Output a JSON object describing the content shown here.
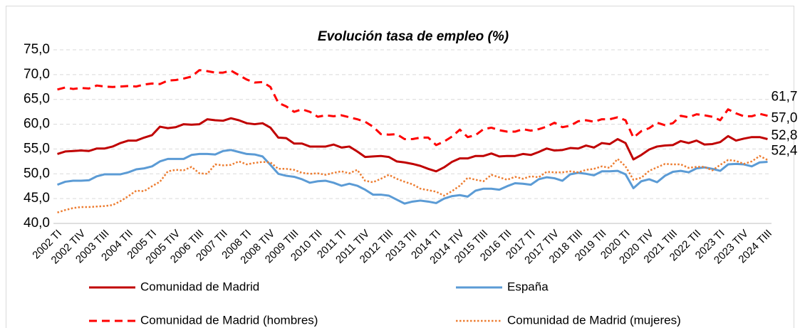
{
  "chart_data": {
    "type": "line",
    "title": "Evolución tasa de empleo (%)",
    "categories": [
      "2002 TI",
      null,
      null,
      "2002 TIV",
      null,
      null,
      "2003 TIII",
      null,
      null,
      "2004 TII",
      null,
      null,
      "2005 TI",
      null,
      null,
      "2005 TIV",
      null,
      null,
      "2006 TIII",
      null,
      null,
      "2007 TII",
      null,
      null,
      "2008 TI",
      null,
      null,
      "2008 TIV",
      null,
      null,
      "2009 TIII",
      null,
      null,
      "2010 TII",
      null,
      null,
      "2011 TI",
      null,
      null,
      "2011 TIV",
      null,
      null,
      "2012 TIII",
      null,
      null,
      "2013 TII",
      null,
      null,
      "2014 TI",
      null,
      null,
      "2014 TIV",
      null,
      null,
      "2015 TIII",
      null,
      null,
      "2016 TII",
      null,
      null,
      "2017 TI",
      null,
      null,
      "2017 TIV",
      null,
      null,
      "2018 TIII",
      null,
      null,
      "2019 TII",
      null,
      null,
      "2020 TI",
      null,
      null,
      "2020 TIV",
      null,
      null,
      "2021 TIII",
      null,
      null,
      "2022 TII",
      null,
      null,
      "2023 TI",
      null,
      null,
      "2023 TIV",
      null,
      null,
      "2024 TIII"
    ],
    "series": [
      {
        "name": "Comunidad de Madrid",
        "color": "#c00000",
        "dash": "solid",
        "values": [
          54.0,
          54.5,
          54.6,
          54.7,
          54.6,
          55.1,
          55.1,
          55.5,
          56.2,
          56.7,
          56.7,
          57.3,
          57.8,
          59.5,
          59.2,
          59.4,
          60.0,
          59.9,
          60.0,
          61.0,
          60.8,
          60.7,
          61.2,
          60.8,
          60.2,
          60.0,
          60.2,
          59.3,
          57.3,
          57.2,
          56.1,
          56.1,
          55.5,
          55.5,
          55.5,
          55.9,
          55.3,
          55.5,
          54.5,
          53.4,
          53.5,
          53.6,
          53.4,
          52.5,
          52.3,
          52.0,
          51.6,
          51.0,
          50.5,
          51.3,
          52.4,
          53.1,
          53.1,
          53.6,
          53.6,
          54.1,
          53.5,
          53.6,
          53.6,
          54.0,
          53.8,
          54.4,
          55.1,
          54.7,
          54.8,
          55.2,
          55.1,
          55.7,
          55.3,
          56.2,
          56.0,
          57.0,
          56.2,
          52.9,
          53.8,
          54.9,
          55.5,
          55.7,
          55.8,
          56.6,
          56.2,
          56.7,
          55.9,
          56.0,
          56.4,
          57.6,
          56.7,
          57.1,
          57.4,
          57.4,
          57.0
        ],
        "value_labels": [
          null,
          null,
          null,
          null,
          null,
          null,
          null,
          null,
          null,
          null,
          null,
          null,
          null,
          null,
          null,
          null,
          null,
          null,
          null,
          null,
          null,
          null,
          null,
          null,
          null,
          null,
          null,
          null,
          null,
          null,
          null,
          null,
          null,
          null,
          null,
          null,
          null,
          null,
          null,
          null,
          null,
          null,
          null,
          null,
          null,
          null,
          null,
          null,
          null,
          null,
          null,
          null,
          null,
          null,
          null,
          null,
          null,
          null,
          null,
          null,
          null,
          null,
          null,
          null,
          null,
          null,
          null,
          null,
          null,
          null,
          null,
          null,
          null,
          null,
          null,
          null,
          null,
          null,
          null,
          null,
          null,
          null,
          null,
          null,
          null,
          null,
          null,
          null,
          null,
          null,
          "57,0"
        ]
      },
      {
        "name": "España",
        "color": "#5b9bd5",
        "dash": "solid",
        "values": [
          47.8,
          48.4,
          48.6,
          48.6,
          48.7,
          49.5,
          49.9,
          49.9,
          49.9,
          50.3,
          50.9,
          51.1,
          51.5,
          52.5,
          53.0,
          53.0,
          53.0,
          53.8,
          54.0,
          54.0,
          53.9,
          54.6,
          54.8,
          54.4,
          54.0,
          53.9,
          53.5,
          51.8,
          50.0,
          49.6,
          49.4,
          48.9,
          48.2,
          48.5,
          48.6,
          48.2,
          47.6,
          48.0,
          47.6,
          46.8,
          45.8,
          45.8,
          45.6,
          44.8,
          44.0,
          44.4,
          44.6,
          44.4,
          44.1,
          45.0,
          45.5,
          45.7,
          45.4,
          46.6,
          47.0,
          47.0,
          46.8,
          47.5,
          48.1,
          48.0,
          47.8,
          48.9,
          49.3,
          49.1,
          48.6,
          49.9,
          50.2,
          50.0,
          49.7,
          50.5,
          50.5,
          50.6,
          49.9,
          47.1,
          48.5,
          48.9,
          48.3,
          49.6,
          50.4,
          50.6,
          50.3,
          51.1,
          51.3,
          51.0,
          50.6,
          51.9,
          52.0,
          51.9,
          51.5,
          52.3,
          52.4
        ],
        "value_labels": [
          null,
          null,
          null,
          null,
          null,
          null,
          null,
          null,
          null,
          null,
          null,
          null,
          null,
          null,
          null,
          null,
          null,
          null,
          null,
          null,
          null,
          null,
          null,
          null,
          null,
          null,
          null,
          null,
          null,
          null,
          null,
          null,
          null,
          null,
          null,
          null,
          null,
          null,
          null,
          null,
          null,
          null,
          null,
          null,
          null,
          null,
          null,
          null,
          null,
          null,
          null,
          null,
          null,
          null,
          null,
          null,
          null,
          null,
          null,
          null,
          null,
          null,
          null,
          null,
          null,
          null,
          null,
          null,
          null,
          null,
          null,
          null,
          null,
          null,
          null,
          null,
          null,
          null,
          null,
          null,
          null,
          null,
          null,
          null,
          null,
          null,
          null,
          null,
          null,
          null,
          "52,4"
        ]
      },
      {
        "name": "Comunidad de Madrid (hombres)",
        "color": "#ff0000",
        "dash": "dashed",
        "values": [
          67.0,
          67.4,
          67.1,
          67.3,
          67.2,
          67.8,
          67.6,
          67.5,
          67.6,
          67.7,
          67.6,
          68.0,
          68.2,
          68.1,
          68.8,
          68.9,
          69.2,
          69.6,
          70.9,
          70.7,
          70.4,
          70.4,
          70.8,
          69.9,
          69.0,
          68.4,
          68.5,
          67.5,
          64.3,
          63.6,
          62.5,
          63.0,
          62.5,
          61.5,
          61.8,
          61.6,
          61.8,
          61.4,
          61.0,
          60.5,
          59.5,
          58.0,
          57.9,
          58.0,
          57.0,
          57.0,
          57.3,
          57.3,
          55.8,
          56.5,
          57.5,
          58.9,
          57.4,
          57.8,
          59.0,
          59.3,
          58.8,
          58.5,
          58.5,
          59.0,
          58.7,
          59.0,
          59.5,
          60.3,
          59.4,
          59.7,
          60.6,
          60.8,
          60.5,
          61.0,
          61.0,
          61.4,
          60.8,
          57.3,
          58.6,
          59.2,
          60.3,
          59.8,
          60.2,
          61.7,
          61.4,
          62.0,
          61.8,
          61.5,
          60.8,
          63.0,
          62.2,
          61.6,
          61.6,
          62.1,
          61.7
        ],
        "value_labels": [
          null,
          null,
          null,
          null,
          null,
          null,
          null,
          null,
          null,
          null,
          null,
          null,
          null,
          null,
          null,
          null,
          null,
          null,
          null,
          null,
          null,
          null,
          null,
          null,
          null,
          null,
          null,
          null,
          null,
          null,
          null,
          null,
          null,
          null,
          null,
          null,
          null,
          null,
          null,
          null,
          null,
          null,
          null,
          null,
          null,
          null,
          null,
          null,
          null,
          null,
          null,
          null,
          null,
          null,
          null,
          null,
          null,
          null,
          null,
          null,
          null,
          null,
          null,
          null,
          null,
          null,
          null,
          null,
          null,
          null,
          null,
          null,
          null,
          null,
          null,
          null,
          null,
          null,
          null,
          null,
          null,
          null,
          null,
          null,
          null,
          null,
          null,
          null,
          null,
          null,
          "61,7"
        ]
      },
      {
        "name": "Comunidad de Madrid (mujeres)",
        "color": "#ed7d31",
        "dash": "dotted",
        "values": [
          42.2,
          42.7,
          43.1,
          43.3,
          43.3,
          43.4,
          43.5,
          43.7,
          44.5,
          45.5,
          46.6,
          46.5,
          47.5,
          48.4,
          50.5,
          50.8,
          50.7,
          51.4,
          50.1,
          50.0,
          51.9,
          51.7,
          51.8,
          52.5,
          51.9,
          52.2,
          52.4,
          52.3,
          51.0,
          51.0,
          50.8,
          50.2,
          50.0,
          50.1,
          49.8,
          50.2,
          50.5,
          50.1,
          50.8,
          48.6,
          48.3,
          49.0,
          49.8,
          49.0,
          48.4,
          47.9,
          47.0,
          46.7,
          46.4,
          45.6,
          46.5,
          47.6,
          49.2,
          48.8,
          48.5,
          49.8,
          49.3,
          48.8,
          49.4,
          49.0,
          49.5,
          49.3,
          50.4,
          50.3,
          50.3,
          50.5,
          50.3,
          50.8,
          51.0,
          51.5,
          51.2,
          53.0,
          51.5,
          48.8,
          49.2,
          50.6,
          51.3,
          52.0,
          51.9,
          51.9,
          51.2,
          51.4,
          51.4,
          50.7,
          51.8,
          52.8,
          52.6,
          52.0,
          52.5,
          53.6,
          52.8
        ],
        "value_labels": [
          null,
          null,
          null,
          null,
          null,
          null,
          null,
          null,
          null,
          null,
          null,
          null,
          null,
          null,
          null,
          null,
          null,
          null,
          null,
          null,
          null,
          null,
          null,
          null,
          null,
          null,
          null,
          null,
          null,
          null,
          null,
          null,
          null,
          null,
          null,
          null,
          null,
          null,
          null,
          null,
          null,
          null,
          null,
          null,
          null,
          null,
          null,
          null,
          null,
          null,
          null,
          null,
          null,
          null,
          null,
          null,
          null,
          null,
          null,
          null,
          null,
          null,
          null,
          null,
          null,
          null,
          null,
          null,
          null,
          null,
          null,
          null,
          null,
          null,
          null,
          null,
          null,
          null,
          null,
          null,
          null,
          null,
          null,
          null,
          null,
          null,
          null,
          null,
          null,
          null,
          "52,8"
        ]
      }
    ],
    "ylim": [
      40,
      75
    ],
    "yticks": [
      {
        "value": 40,
        "label": "40,0"
      },
      {
        "value": 45,
        "label": "45,0"
      },
      {
        "value": 50,
        "label": "50,0"
      },
      {
        "value": 55,
        "label": "55,0"
      },
      {
        "value": 60,
        "label": "60,0"
      },
      {
        "value": 65,
        "label": "65,0"
      },
      {
        "value": 70,
        "label": "70,0"
      },
      {
        "value": 75,
        "label": "75,0"
      }
    ],
    "grid": true,
    "legend": "bottom"
  }
}
